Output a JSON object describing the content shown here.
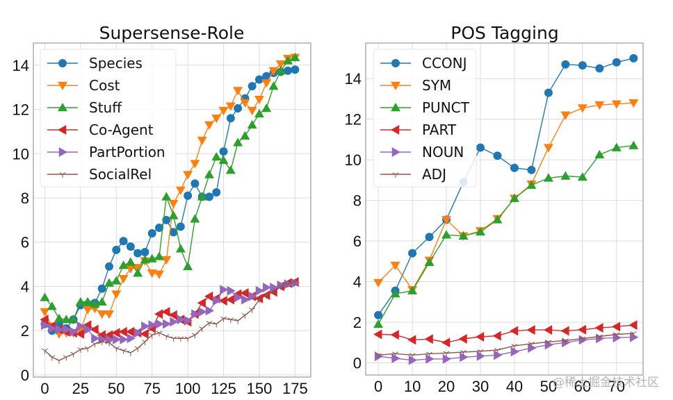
{
  "watermark": "@稀土掘金技术社区",
  "chart_data": [
    {
      "type": "line",
      "title": "Supersense-Role",
      "xlabel": "",
      "ylabel": "",
      "xlim": [
        -8,
        186
      ],
      "ylim": [
        -0.1,
        15.0
      ],
      "xticks": [
        0,
        25,
        50,
        75,
        100,
        125,
        150,
        175
      ],
      "yticks": [
        0,
        2,
        4,
        6,
        8,
        10,
        12,
        14
      ],
      "grid": true,
      "legend_position": "top-left",
      "x": [
        0,
        5,
        10,
        15,
        20,
        25,
        30,
        35,
        40,
        45,
        50,
        55,
        60,
        65,
        70,
        75,
        80,
        85,
        90,
        95,
        100,
        105,
        110,
        115,
        120,
        125,
        130,
        135,
        140,
        145,
        150,
        155,
        160,
        165,
        170,
        175
      ],
      "series": [
        {
          "name": "Species",
          "color": "#1f77b4",
          "marker": "circle",
          "values": [
            2.3,
            2.0,
            2.25,
            2.1,
            2.5,
            3.15,
            3.2,
            3.25,
            3.9,
            4.9,
            5.65,
            6.05,
            5.8,
            5.5,
            5.55,
            6.4,
            6.65,
            7.0,
            6.45,
            6.7,
            8.1,
            8.65,
            8.05,
            8.05,
            8.25,
            10.1,
            11.6,
            12.05,
            12.5,
            13.05,
            13.35,
            13.5,
            13.65,
            13.7,
            13.75,
            13.8
          ]
        },
        {
          "name": "Cost",
          "color": "#ff7f0e",
          "marker": "triangle-down",
          "values": [
            2.85,
            2.2,
            1.85,
            1.9,
            1.9,
            2.0,
            2.95,
            3.0,
            2.75,
            2.75,
            3.65,
            4.35,
            4.8,
            4.85,
            5.15,
            4.6,
            4.55,
            5.2,
            7.75,
            8.35,
            9.05,
            9.55,
            10.6,
            11.3,
            11.6,
            11.95,
            12.15,
            12.85,
            12.3,
            11.95,
            12.45,
            13.2,
            13.75,
            14.05,
            14.3,
            14.35
          ]
        },
        {
          "name": "Stuff",
          "color": "#2ca02c",
          "marker": "triangle-up",
          "values": [
            3.5,
            3.1,
            2.55,
            2.5,
            2.5,
            3.3,
            3.3,
            3.2,
            3.3,
            4.15,
            4.25,
            4.95,
            5.1,
            4.6,
            5.2,
            5.25,
            5.35,
            8.05,
            7.2,
            5.7,
            4.9,
            7.05,
            8.05,
            9.05,
            9.85,
            9.7,
            9.25,
            10.5,
            10.8,
            11.3,
            11.8,
            12.05,
            13.05,
            13.75,
            14.2,
            14.35
          ]
        },
        {
          "name": "Co-Agent",
          "color": "#d62728",
          "marker": "triangle-left",
          "values": [
            2.5,
            2.2,
            2.05,
            1.95,
            1.9,
            1.85,
            2.25,
            2.05,
            1.8,
            1.8,
            1.9,
            1.95,
            1.95,
            1.9,
            1.85,
            2.1,
            2.75,
            2.85,
            2.7,
            2.5,
            2.4,
            2.75,
            3.25,
            3.55,
            3.45,
            3.35,
            3.4,
            3.65,
            3.7,
            3.55,
            3.45,
            3.6,
            3.75,
            4.0,
            4.15,
            4.2
          ]
        },
        {
          "name": "PartPortion",
          "color": "#9467bd",
          "marker": "triangle-right",
          "values": [
            2.25,
            2.1,
            2.05,
            2.05,
            1.95,
            2.2,
            2.05,
            1.65,
            1.6,
            1.6,
            1.6,
            1.6,
            1.65,
            1.9,
            2.2,
            2.25,
            2.3,
            2.3,
            2.4,
            2.5,
            2.45,
            2.75,
            2.85,
            2.9,
            3.35,
            3.85,
            3.8,
            3.5,
            3.4,
            3.55,
            3.8,
            3.95,
            3.95,
            4.05,
            4.1,
            4.15
          ]
        },
        {
          "name": "SocialRel",
          "color": "#8c564b",
          "marker": "tri-down",
          "values": [
            1.1,
            0.8,
            0.65,
            0.8,
            0.95,
            1.15,
            1.2,
            1.4,
            1.5,
            1.45,
            1.2,
            1.1,
            1.0,
            1.2,
            1.5,
            1.8,
            1.9,
            1.75,
            1.65,
            1.65,
            1.65,
            1.8,
            2.1,
            2.35,
            2.3,
            2.55,
            2.5,
            2.45,
            2.7,
            2.95,
            3.4,
            3.6,
            3.8,
            4.0,
            4.1,
            4.2
          ]
        }
      ]
    },
    {
      "type": "line",
      "title": "POS Tagging",
      "xlabel": "",
      "ylabel": "",
      "xlim": [
        -3.7,
        77.8
      ],
      "ylim": [
        -0.6,
        15.75
      ],
      "xticks": [
        0,
        10,
        20,
        30,
        40,
        50,
        60,
        70
      ],
      "yticks": [
        0,
        2,
        4,
        6,
        8,
        10,
        12,
        14
      ],
      "grid": true,
      "legend_position": "top-left",
      "x": [
        0,
        5,
        10,
        15,
        20,
        25,
        30,
        35,
        40,
        45,
        50,
        55,
        60,
        65,
        70,
        75
      ],
      "series": [
        {
          "name": "CCONJ",
          "color": "#1f77b4",
          "marker": "circle",
          "values": [
            2.35,
            3.55,
            5.4,
            6.2,
            7.05,
            8.9,
            10.6,
            10.2,
            9.6,
            9.5,
            13.3,
            14.7,
            14.65,
            14.5,
            14.8,
            15.0
          ]
        },
        {
          "name": "SYM",
          "color": "#ff7f0e",
          "marker": "triangle-down",
          "values": [
            3.95,
            4.8,
            3.6,
            5.05,
            7.05,
            6.25,
            6.5,
            7.1,
            8.1,
            8.8,
            10.6,
            12.2,
            12.55,
            12.7,
            12.75,
            12.8
          ]
        },
        {
          "name": "PUNCT",
          "color": "#2ca02c",
          "marker": "triangle-up",
          "values": [
            1.9,
            3.4,
            3.55,
            4.95,
            6.3,
            6.25,
            6.45,
            7.05,
            8.1,
            8.75,
            9.1,
            9.2,
            9.15,
            10.25,
            10.6,
            10.7
          ]
        },
        {
          "name": "PART",
          "color": "#d62728",
          "marker": "triangle-left",
          "values": [
            1.4,
            1.38,
            1.13,
            1.17,
            1.0,
            1.18,
            1.28,
            1.33,
            1.57,
            1.62,
            1.62,
            1.57,
            1.63,
            1.72,
            1.78,
            1.86
          ]
        },
        {
          "name": "NOUN",
          "color": "#9467bd",
          "marker": "triangle-right",
          "values": [
            0.32,
            0.22,
            0.13,
            0.19,
            0.19,
            0.28,
            0.33,
            0.38,
            0.55,
            0.73,
            0.89,
            1.0,
            1.13,
            1.2,
            1.24,
            1.26
          ]
        },
        {
          "name": "ADJ",
          "color": "#8c564b",
          "marker": "tri-down",
          "values": [
            0.38,
            0.45,
            0.38,
            0.44,
            0.48,
            0.53,
            0.57,
            0.63,
            0.84,
            0.94,
            1.03,
            1.1,
            1.2,
            1.3,
            1.4,
            1.45
          ]
        }
      ]
    }
  ]
}
